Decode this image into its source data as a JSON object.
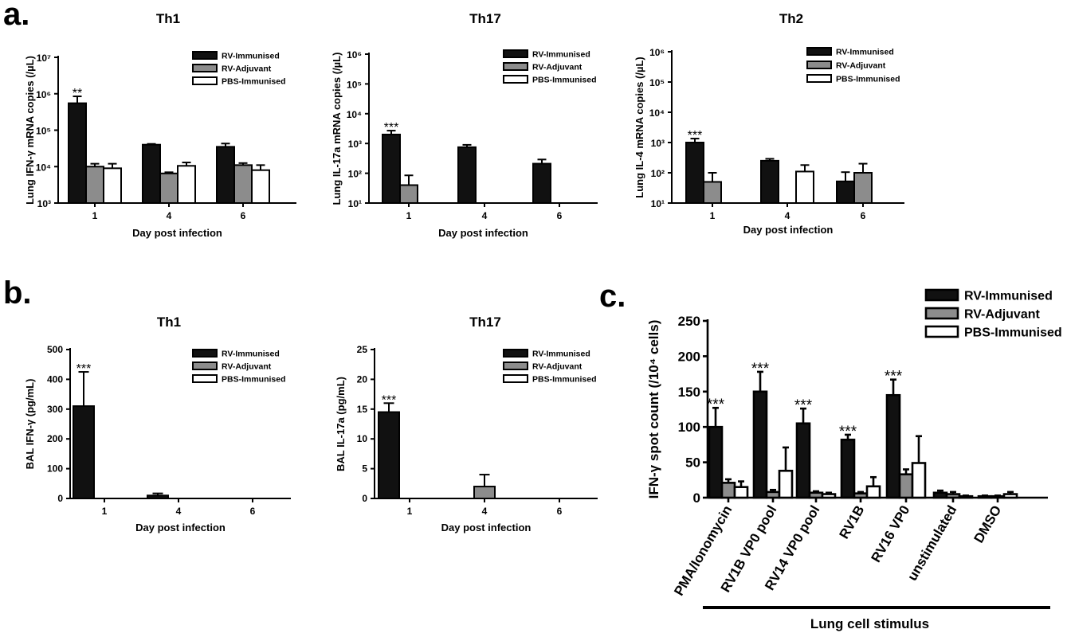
{
  "panel_labels": [
    "a.",
    "b.",
    "c."
  ],
  "colors": {
    "RV-Immunised": "#111111",
    "RV-Adjuvant": "#8c8c8c",
    "PBS-Immunised": "#ffffff"
  },
  "chart_data": [
    {
      "type": "bar",
      "scale": "log",
      "title": "Th1",
      "xlabel": "Day post infection",
      "ylabel": "Lung IFN-γ mRNA copies (/µL)",
      "categories": [
        "1",
        "4",
        "6"
      ],
      "ylim": [
        1000,
        10000000
      ],
      "series": [
        {
          "name": "RV-Immunised",
          "values": [
            550000,
            40000,
            35000
          ],
          "errors": [
            850000,
            42000,
            43000
          ]
        },
        {
          "name": "RV-Adjuvant",
          "values": [
            10000,
            6500,
            11000
          ],
          "errors": [
            12000,
            7000,
            12500
          ]
        },
        {
          "name": "PBS-Immunised",
          "values": [
            9000,
            10500,
            8000
          ],
          "errors": [
            12000,
            13000,
            11000
          ]
        }
      ],
      "annotations": [
        {
          "category": "1",
          "series": "RV-Immunised",
          "text": "**"
        }
      ]
    },
    {
      "type": "bar",
      "scale": "log",
      "title": "Th17",
      "xlabel": "Day post infection",
      "ylabel": "Lung IL-17a mRNA copies (/µL)",
      "categories": [
        "1",
        "4",
        "6"
      ],
      "ylim": [
        10,
        1000000
      ],
      "series": [
        {
          "name": "RV-Immunised",
          "values": [
            2000,
            750,
            210
          ],
          "errors": [
            2700,
            900,
            290
          ]
        },
        {
          "name": "RV-Adjuvant",
          "values": [
            40,
            null,
            null
          ],
          "errors": [
            85,
            null,
            null
          ]
        },
        {
          "name": "PBS-Immunised",
          "values": [
            null,
            null,
            null
          ],
          "errors": [
            null,
            null,
            null
          ]
        }
      ],
      "annotations": [
        {
          "category": "1",
          "series": "RV-Immunised",
          "text": "***"
        }
      ]
    },
    {
      "type": "bar",
      "scale": "log",
      "title": "Th2",
      "xlabel": "Day post infection",
      "ylabel": "Lung IL-4 mRNA copies (/µL)",
      "categories": [
        "1",
        "4",
        "6"
      ],
      "ylim": [
        10,
        1000000
      ],
      "series": [
        {
          "name": "RV-Immunised",
          "values": [
            1000,
            250,
            52
          ],
          "errors": [
            1350,
            290,
            105
          ]
        },
        {
          "name": "RV-Adjuvant",
          "values": [
            50,
            null,
            100
          ],
          "errors": [
            100,
            null,
            200
          ]
        },
        {
          "name": "PBS-Immunised",
          "values": [
            null,
            110,
            null
          ],
          "errors": [
            null,
            180,
            null
          ]
        }
      ],
      "annotations": [
        {
          "category": "1",
          "series": "RV-Immunised",
          "text": "***"
        }
      ]
    },
    {
      "type": "bar",
      "scale": "linear",
      "title": "Th1",
      "xlabel": "Day post infection",
      "ylabel": "BAL IFN-γ (pg/mL)",
      "categories": [
        "1",
        "4",
        "6"
      ],
      "ylim": [
        0,
        500
      ],
      "yticks": [
        0,
        100,
        200,
        300,
        400,
        500
      ],
      "series": [
        {
          "name": "RV-Immunised",
          "values": [
            310,
            10,
            null
          ],
          "errors": [
            425,
            17,
            null
          ]
        },
        {
          "name": "RV-Adjuvant",
          "values": [
            null,
            null,
            null
          ],
          "errors": [
            null,
            null,
            null
          ]
        },
        {
          "name": "PBS-Immunised",
          "values": [
            null,
            null,
            null
          ],
          "errors": [
            null,
            null,
            null
          ]
        }
      ],
      "annotations": [
        {
          "category": "1",
          "series": "RV-Immunised",
          "text": "***"
        }
      ]
    },
    {
      "type": "bar",
      "scale": "linear",
      "title": "Th17",
      "xlabel": "Day post infection",
      "ylabel": "BAL IL-17a (pg/mL)",
      "categories": [
        "1",
        "4",
        "6"
      ],
      "ylim": [
        0,
        25
      ],
      "yticks": [
        0,
        5,
        10,
        15,
        20,
        25
      ],
      "series": [
        {
          "name": "RV-Immunised",
          "values": [
            14.5,
            null,
            null
          ],
          "errors": [
            16,
            null,
            null
          ]
        },
        {
          "name": "RV-Adjuvant",
          "values": [
            null,
            2,
            null
          ],
          "errors": [
            null,
            4,
            null
          ]
        },
        {
          "name": "PBS-Immunised",
          "values": [
            null,
            null,
            null
          ],
          "errors": [
            null,
            null,
            null
          ]
        }
      ],
      "annotations": [
        {
          "category": "1",
          "series": "RV-Immunised",
          "text": "***"
        }
      ]
    },
    {
      "type": "bar",
      "scale": "linear",
      "title": "",
      "xlabel": "Lung cell stimulus",
      "ylabel": "IFN-γ spot count (/10⁴ cells)",
      "categories": [
        "PMA/Ionomycin",
        "RV1B VP0 pool",
        "RV14 VP0 pool",
        "RV1B",
        "RV16 VP0",
        "unstimulated",
        "DMSO"
      ],
      "ylim": [
        0,
        250
      ],
      "yticks": [
        0,
        50,
        100,
        150,
        200,
        250
      ],
      "series": [
        {
          "name": "RV-Immunised",
          "values": [
            100,
            150,
            105,
            82,
            145,
            7,
            2
          ],
          "errors": [
            127,
            178,
            126,
            89,
            167,
            10,
            3
          ]
        },
        {
          "name": "RV-Adjuvant",
          "values": [
            21,
            8,
            7,
            6,
            33,
            5,
            2
          ],
          "errors": [
            26,
            11,
            9,
            8,
            40,
            8,
            3
          ]
        },
        {
          "name": "PBS-Immunised",
          "values": [
            15,
            38,
            5,
            16,
            49,
            2,
            5
          ],
          "errors": [
            23,
            71,
            7,
            29,
            87,
            3,
            8
          ]
        }
      ],
      "annotations": [
        {
          "category": "PMA/Ionomycin",
          "series": "RV-Immunised",
          "text": "***"
        },
        {
          "category": "RV1B VP0 pool",
          "series": "RV-Immunised",
          "text": "***"
        },
        {
          "category": "RV14 VP0 pool",
          "series": "RV-Immunised",
          "text": "***"
        },
        {
          "category": "RV1B",
          "series": "RV-Immunised",
          "text": "***"
        },
        {
          "category": "RV16 VP0",
          "series": "RV-Immunised",
          "text": "***"
        }
      ]
    }
  ]
}
